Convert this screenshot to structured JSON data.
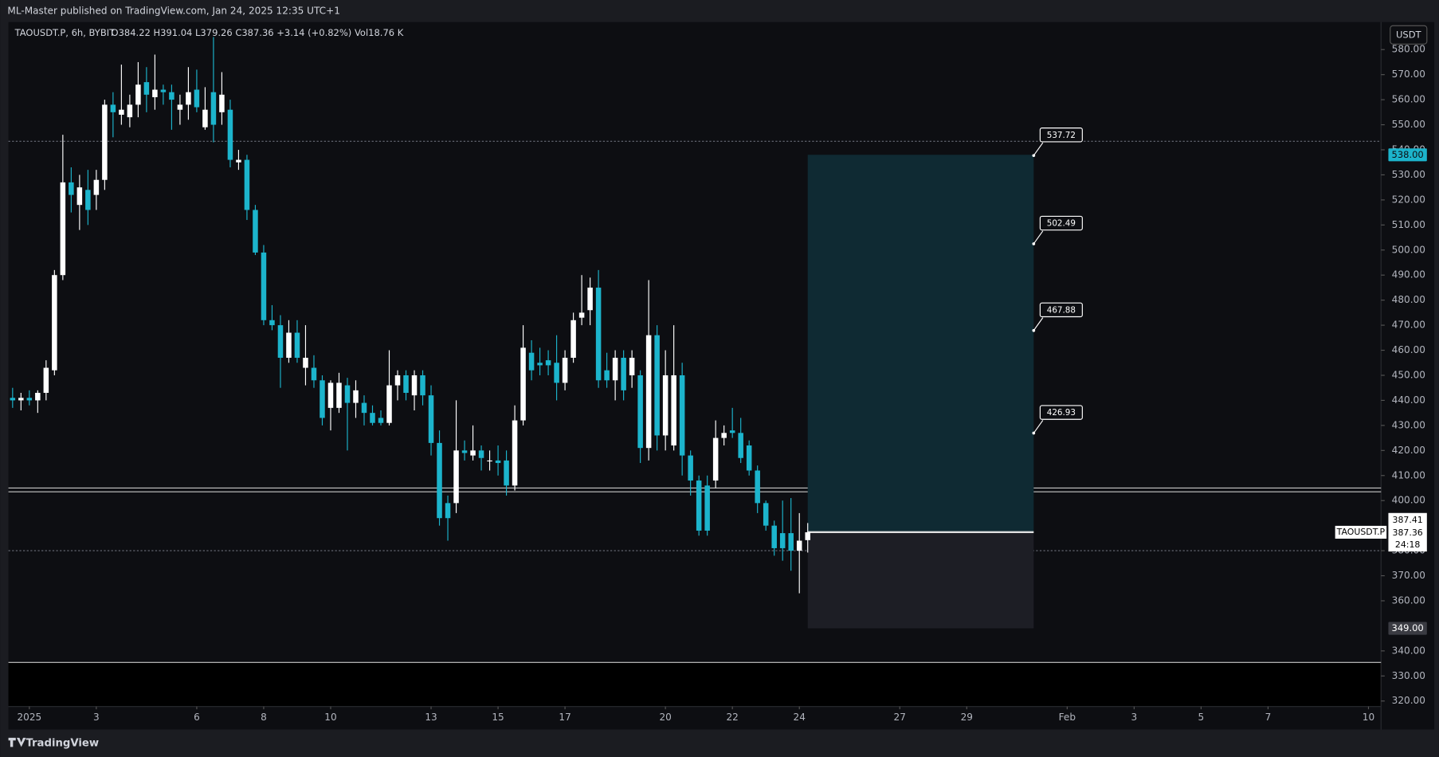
{
  "header": {
    "publisher": "ML-Master published on TradingView.com, Jan 24, 2025 12:35 UTC+1",
    "brand": "TradingView"
  },
  "legend": {
    "symbol": "TAOUSDT.P, 6h, BYBIT",
    "ohlc": "O384.22 H391.04 L379.26 C387.36 +3.14 (+0.82%) Vol18.76 K",
    "currency": "USDT"
  },
  "chart_data": {
    "type": "candlestick",
    "up_color": "#ffffff",
    "down_color": "#1cb4cc",
    "xlim": [
      -0.5,
      163.5
    ],
    "ylim": [
      317.8,
      591
    ],
    "xticks": [
      {
        "value": 2,
        "label": "2025"
      },
      {
        "value": 10,
        "label": "3"
      },
      {
        "value": 22,
        "label": "6"
      },
      {
        "value": 30,
        "label": "8"
      },
      {
        "value": 38,
        "label": "10"
      },
      {
        "value": 50,
        "label": "13"
      },
      {
        "value": 58,
        "label": "15"
      },
      {
        "value": 66,
        "label": "17"
      },
      {
        "value": 78,
        "label": "20"
      },
      {
        "value": 86,
        "label": "22"
      },
      {
        "value": 94,
        "label": "24"
      },
      {
        "value": 106,
        "label": "27"
      },
      {
        "value": 114,
        "label": "29"
      },
      {
        "value": 126,
        "label": "Feb"
      },
      {
        "value": 134,
        "label": "3"
      },
      {
        "value": 142,
        "label": "5"
      },
      {
        "value": 150,
        "label": "7"
      },
      {
        "value": 162,
        "label": "10"
      }
    ],
    "yticks": [
      {
        "value": 580,
        "label": "580.00"
      },
      {
        "value": 570,
        "label": "570.00"
      },
      {
        "value": 560,
        "label": "560.00"
      },
      {
        "value": 550,
        "label": "550.00"
      },
      {
        "value": 540,
        "label": "540.00"
      },
      {
        "value": 530,
        "label": "530.00"
      },
      {
        "value": 520,
        "label": "520.00"
      },
      {
        "value": 510,
        "label": "510.00"
      },
      {
        "value": 500,
        "label": "500.00"
      },
      {
        "value": 490,
        "label": "490.00"
      },
      {
        "value": 480,
        "label": "480.00"
      },
      {
        "value": 470,
        "label": "470.00"
      },
      {
        "value": 460,
        "label": "460.00"
      },
      {
        "value": 450,
        "label": "450.00"
      },
      {
        "value": 440,
        "label": "440.00"
      },
      {
        "value": 430,
        "label": "430.00"
      },
      {
        "value": 420,
        "label": "420.00"
      },
      {
        "value": 410,
        "label": "410.00"
      },
      {
        "value": 400,
        "label": "400.00"
      },
      {
        "value": 380,
        "label": "380.00"
      },
      {
        "value": 370,
        "label": "370.00"
      },
      {
        "value": 360,
        "label": "360.00"
      },
      {
        "value": 340,
        "label": "340.00"
      },
      {
        "value": 330,
        "label": "330.00"
      },
      {
        "value": 320,
        "label": "320.00"
      }
    ],
    "candles": [
      [
        441,
        445,
        437,
        440
      ],
      [
        440,
        443,
        436,
        441
      ],
      [
        441,
        444,
        438,
        440
      ],
      [
        440,
        444,
        435,
        443
      ],
      [
        443,
        456,
        440,
        453
      ],
      [
        452,
        492,
        450,
        490
      ],
      [
        490,
        546,
        488,
        527
      ],
      [
        527,
        533,
        515,
        522
      ],
      [
        518,
        530,
        508,
        525
      ],
      [
        524,
        532,
        510,
        516
      ],
      [
        522,
        532,
        516,
        528
      ],
      [
        528,
        560,
        524,
        558
      ],
      [
        558,
        563,
        545,
        555
      ],
      [
        554,
        574,
        550,
        556
      ],
      [
        553,
        562,
        549,
        558
      ],
      [
        558,
        575,
        553,
        566
      ],
      [
        567,
        573,
        555,
        562
      ],
      [
        561,
        578,
        556,
        564
      ],
      [
        564,
        566,
        558,
        563
      ],
      [
        563,
        566,
        548,
        560
      ],
      [
        556,
        562,
        550,
        558
      ],
      [
        558,
        573,
        552,
        563
      ],
      [
        564,
        572,
        555,
        557
      ],
      [
        549,
        565,
        548,
        556
      ],
      [
        563,
        585,
        543,
        550
      ],
      [
        555,
        571,
        550,
        562
      ],
      [
        556,
        560,
        533,
        536
      ],
      [
        535,
        540,
        532,
        536
      ],
      [
        536,
        538,
        512,
        516
      ],
      [
        516,
        518,
        498,
        499
      ],
      [
        499,
        502,
        470,
        472
      ],
      [
        472,
        478,
        468,
        470
      ],
      [
        470,
        474,
        445,
        457
      ],
      [
        457,
        472,
        455,
        467
      ],
      [
        467,
        472,
        455,
        457
      ],
      [
        453,
        470,
        446,
        457
      ],
      [
        453,
        458,
        445,
        448
      ],
      [
        448,
        450,
        430,
        433
      ],
      [
        437,
        448,
        428,
        447
      ],
      [
        437,
        451,
        435,
        447
      ],
      [
        446,
        449,
        420,
        439
      ],
      [
        439,
        448,
        433,
        444
      ],
      [
        439,
        442,
        430,
        435
      ],
      [
        435,
        438,
        430,
        431
      ],
      [
        433,
        436,
        430,
        431
      ],
      [
        431,
        460,
        430,
        446
      ],
      [
        446,
        452,
        440,
        450
      ],
      [
        450,
        452,
        440,
        443
      ],
      [
        442,
        452,
        436,
        450
      ],
      [
        450,
        452,
        438,
        442
      ],
      [
        442,
        446,
        418,
        423
      ],
      [
        423,
        428,
        390,
        393
      ],
      [
        399,
        402,
        384,
        393
      ],
      [
        399,
        440,
        395,
        420
      ],
      [
        420,
        424,
        416,
        419
      ],
      [
        418,
        430,
        416,
        420
      ],
      [
        420,
        422,
        412,
        417
      ],
      [
        416,
        420,
        412,
        416
      ],
      [
        416,
        422,
        410,
        415
      ],
      [
        416,
        420,
        402,
        406
      ],
      [
        406,
        438,
        404,
        432
      ],
      [
        432,
        470,
        430,
        461
      ],
      [
        459,
        464,
        448,
        452
      ],
      [
        455,
        461,
        450,
        454
      ],
      [
        456,
        460,
        450,
        454
      ],
      [
        455,
        466,
        440,
        447
      ],
      [
        447,
        460,
        444,
        457
      ],
      [
        457,
        475,
        455,
        472
      ],
      [
        473,
        490,
        470,
        475
      ],
      [
        476,
        489,
        470,
        485
      ],
      [
        485,
        492,
        445,
        448
      ],
      [
        452,
        459,
        445,
        448
      ],
      [
        448,
        460,
        440,
        457
      ],
      [
        457,
        460,
        440,
        444
      ],
      [
        450,
        460,
        445,
        457
      ],
      [
        450,
        452,
        415,
        421
      ],
      [
        421,
        488,
        416,
        466
      ],
      [
        466,
        470,
        420,
        426
      ],
      [
        426,
        460,
        420,
        450
      ],
      [
        422,
        470,
        420,
        450
      ],
      [
        450,
        455,
        410,
        418
      ],
      [
        418,
        420,
        402,
        408
      ],
      [
        408,
        410,
        386,
        388
      ],
      [
        406,
        410,
        386,
        388
      ],
      [
        408,
        432,
        405,
        425
      ],
      [
        425,
        430,
        422,
        427
      ],
      [
        428,
        437,
        425,
        427
      ],
      [
        427,
        433,
        415,
        417
      ],
      [
        422,
        424,
        410,
        412
      ],
      [
        412,
        414,
        395,
        399
      ],
      [
        399,
        400,
        388,
        390
      ],
      [
        390,
        392,
        378,
        381
      ],
      [
        387,
        400,
        376,
        381
      ],
      [
        387,
        401,
        372,
        380
      ],
      [
        380,
        395,
        363,
        384
      ],
      [
        384.22,
        391.04,
        379.26,
        387.36
      ]
    ],
    "hlines": [
      405,
      403.5,
      335.4
    ],
    "dotted_lines": [
      543.4,
      380
    ],
    "position": {
      "start": 95,
      "end": 122,
      "entry": 387.41,
      "target": 538,
      "target_label": "538.00",
      "stop": 349,
      "stop_label": "349.00",
      "levels": [
        537.72,
        502.49,
        467.88,
        426.93
      ]
    },
    "price_tag": {
      "symbol": "TAOUSDT.P",
      "bid": 387.41,
      "last": 387.36,
      "countdown": "24:18"
    }
  }
}
